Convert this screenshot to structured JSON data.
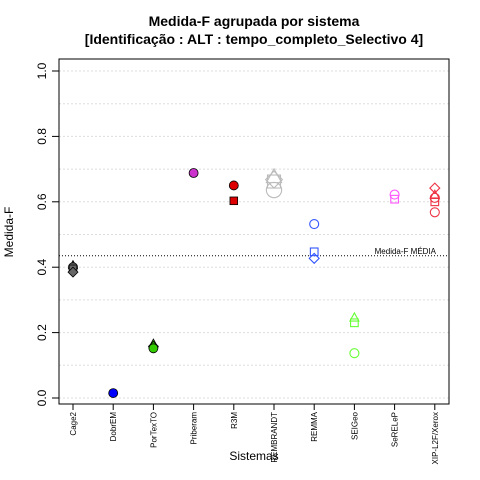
{
  "chart_data": {
    "type": "scatter",
    "title": "Medida-F agrupada por sistema",
    "subtitle": "[Identificação : ALT : tempo_completo_Selectivo 4]",
    "xlabel": "Sistemas",
    "ylabel": "Medida-F",
    "ylim": [
      0,
      1
    ],
    "yticks": [
      "0.0",
      "0.2",
      "0.4",
      "0.6",
      "0.8",
      "1.0"
    ],
    "grid": "horizontal dotted",
    "categories": [
      "Cage2",
      "DobrEM",
      "PorTexTO",
      "Priberam",
      "R3M",
      "REMBRANDT",
      "REMMA",
      "SEIGeo",
      "SeRELeP",
      "XIP-L2F/Xerox"
    ],
    "reference_line": {
      "label": "Medida-F MÉDIA",
      "value": 0.435
    },
    "points": [
      {
        "category": "Cage2",
        "value": 0.405,
        "marker": "triangle",
        "filled": true,
        "color": "#666666"
      },
      {
        "category": "Cage2",
        "value": 0.4,
        "marker": "circle",
        "filled": true,
        "color": "#666666"
      },
      {
        "category": "Cage2",
        "value": 0.395,
        "marker": "square",
        "filled": true,
        "color": "#666666"
      },
      {
        "category": "Cage2",
        "value": 0.385,
        "marker": "diamond",
        "filled": true,
        "color": "#666666"
      },
      {
        "category": "DobrEM",
        "value": 0.015,
        "marker": "circle",
        "filled": true,
        "color": "#0000ff"
      },
      {
        "category": "PorTexTO",
        "value": 0.165,
        "marker": "triangle",
        "filled": true,
        "color": "#33cc00"
      },
      {
        "category": "PorTexTO",
        "value": 0.158,
        "marker": "diamond",
        "filled": true,
        "color": "#33cc00"
      },
      {
        "category": "PorTexTO",
        "value": 0.152,
        "marker": "circle",
        "filled": true,
        "color": "#33cc00"
      },
      {
        "category": "Priberam",
        "value": 0.688,
        "marker": "circle",
        "filled": true,
        "color": "#cc33cc"
      },
      {
        "category": "R3M",
        "value": 0.65,
        "marker": "circle",
        "filled": true,
        "color": "#dd0000"
      },
      {
        "category": "R3M",
        "value": 0.603,
        "marker": "square",
        "filled": true,
        "color": "#dd0000"
      },
      {
        "category": "REMBRANDT",
        "value": 0.675,
        "marker": "triangle",
        "filled": false,
        "color": "#bbbbbb"
      },
      {
        "category": "REMBRANDT",
        "value": 0.668,
        "marker": "diamond",
        "filled": false,
        "color": "#bbbbbb"
      },
      {
        "category": "REMBRANDT",
        "value": 0.662,
        "marker": "square",
        "filled": false,
        "color": "#bbbbbb"
      },
      {
        "category": "REMBRANDT",
        "value": 0.636,
        "marker": "circle",
        "filled": false,
        "color": "#bbbbbb"
      },
      {
        "category": "REMMA",
        "value": 0.532,
        "marker": "circle",
        "filled": false,
        "color": "#3355ff"
      },
      {
        "category": "REMMA",
        "value": 0.447,
        "marker": "square",
        "filled": false,
        "color": "#3355ff"
      },
      {
        "category": "REMMA",
        "value": 0.427,
        "marker": "diamond",
        "filled": false,
        "color": "#3355ff"
      },
      {
        "category": "SEIGeo",
        "value": 0.245,
        "marker": "triangle",
        "filled": false,
        "color": "#66ff33"
      },
      {
        "category": "SEIGeo",
        "value": 0.23,
        "marker": "square",
        "filled": false,
        "color": "#66ff33"
      },
      {
        "category": "SEIGeo",
        "value": 0.137,
        "marker": "circle",
        "filled": false,
        "color": "#66ff33"
      },
      {
        "category": "SeRELeP",
        "value": 0.622,
        "marker": "circle",
        "filled": false,
        "color": "#ff55ff"
      },
      {
        "category": "SeRELeP",
        "value": 0.608,
        "marker": "square",
        "filled": false,
        "color": "#ff55ff"
      },
      {
        "category": "XIP-L2F/Xerox",
        "value": 0.642,
        "marker": "diamond",
        "filled": false,
        "color": "#ee3344"
      },
      {
        "category": "XIP-L2F/Xerox",
        "value": 0.62,
        "marker": "triangle",
        "filled": false,
        "color": "#ee3344"
      },
      {
        "category": "XIP-L2F/Xerox",
        "value": 0.612,
        "marker": "circle",
        "filled": false,
        "color": "#ee3344"
      },
      {
        "category": "XIP-L2F/Xerox",
        "value": 0.6,
        "marker": "square",
        "filled": false,
        "color": "#ee3344"
      },
      {
        "category": "XIP-L2F/Xerox",
        "value": 0.568,
        "marker": "circle",
        "filled": false,
        "color": "#ee3344"
      }
    ]
  }
}
